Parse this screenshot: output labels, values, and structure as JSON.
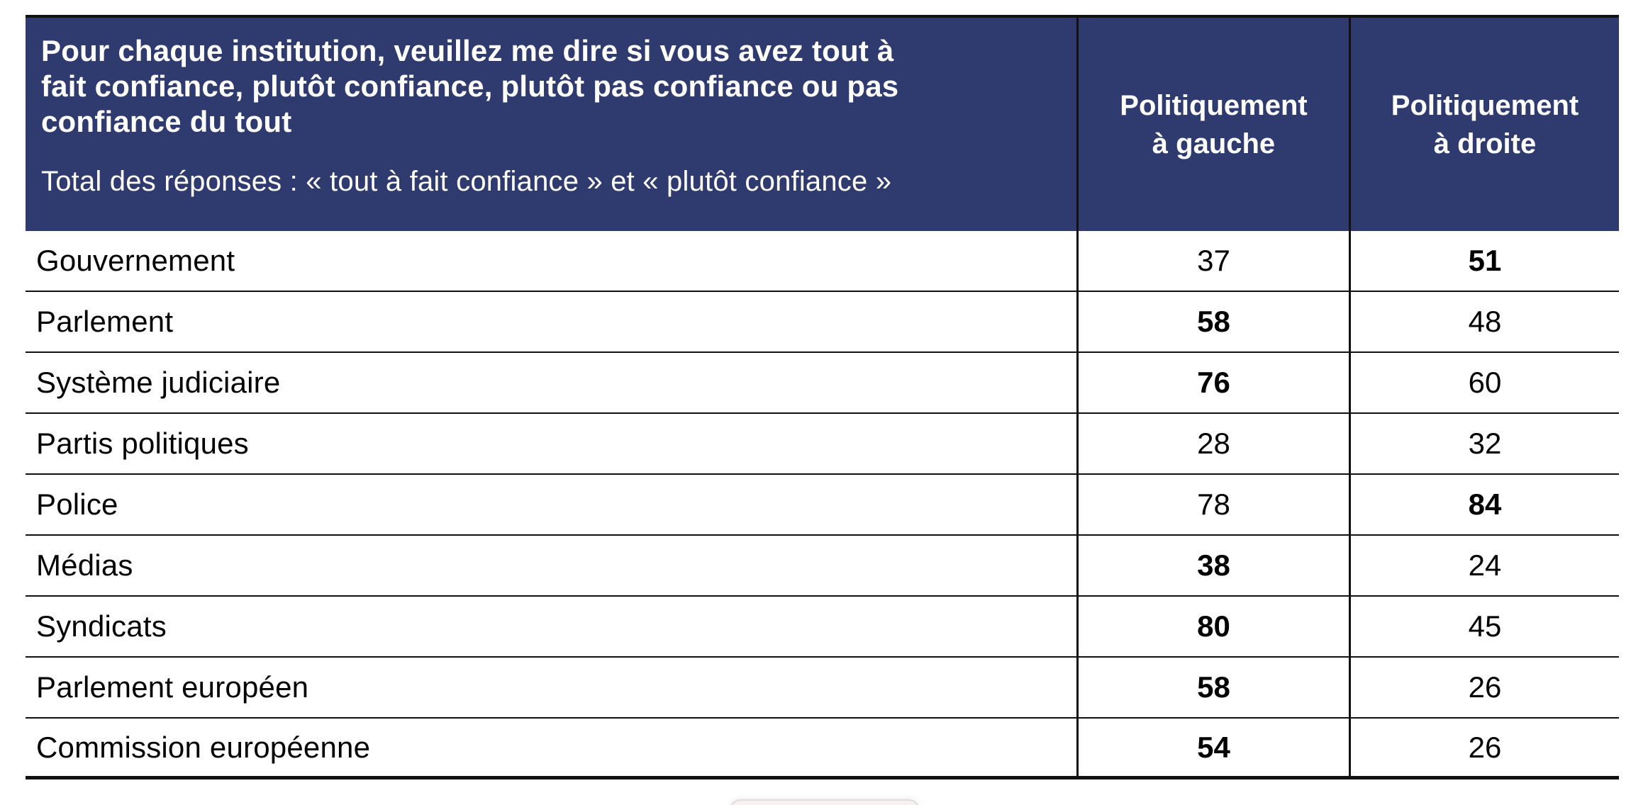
{
  "table": {
    "title_lines": [
      "Pour chaque institution, veuillez me dire si vous avez tout à",
      "fait confiance, plutôt confiance, plutôt pas confiance ou pas",
      "confiance du tout"
    ],
    "subtitle": "Total des réponses : « tout à fait confiance » et « plutôt confiance »",
    "columns": [
      {
        "line1": "Politiquement",
        "line2": "à gauche"
      },
      {
        "line1": "Politiquement",
        "line2": "à droite"
      }
    ],
    "rows": [
      {
        "label": "Gouvernement",
        "gauche": {
          "value": "37",
          "bold": false
        },
        "droite": {
          "value": "51",
          "bold": true
        }
      },
      {
        "label": "Parlement",
        "gauche": {
          "value": "58",
          "bold": true
        },
        "droite": {
          "value": "48",
          "bold": false
        }
      },
      {
        "label": "Système judiciaire",
        "gauche": {
          "value": "76",
          "bold": true
        },
        "droite": {
          "value": "60",
          "bold": false
        }
      },
      {
        "label": "Partis politiques",
        "gauche": {
          "value": "28",
          "bold": false
        },
        "droite": {
          "value": "32",
          "bold": false
        }
      },
      {
        "label": "Police",
        "gauche": {
          "value": "78",
          "bold": false
        },
        "droite": {
          "value": "84",
          "bold": true
        }
      },
      {
        "label": "Médias",
        "gauche": {
          "value": "38",
          "bold": true
        },
        "droite": {
          "value": "24",
          "bold": false
        }
      },
      {
        "label": "Syndicats",
        "gauche": {
          "value": "80",
          "bold": true
        },
        "droite": {
          "value": "45",
          "bold": false
        }
      },
      {
        "label": "Parlement européen",
        "gauche": {
          "value": "58",
          "bold": true
        },
        "droite": {
          "value": "26",
          "bold": false
        }
      },
      {
        "label": "Commission européenne",
        "gauche": {
          "value": "54",
          "bold": true
        },
        "droite": {
          "value": "26",
          "bold": false
        }
      }
    ]
  },
  "colors": {
    "header_bg": "#2F3A6E",
    "header_text": "#FFFFFF",
    "border": "#111111",
    "body_text": "#000000",
    "popup_bg": "#F7F3F3"
  },
  "chart_data": {
    "type": "table",
    "title": "Pour chaque institution, veuillez me dire si vous avez tout à fait confiance, plutôt confiance, plutôt pas confiance ou pas confiance du tout",
    "subtitle": "Total des réponses : « tout à fait confiance » et « plutôt confiance »",
    "categories": [
      "Gouvernement",
      "Parlement",
      "Système judiciaire",
      "Partis politiques",
      "Police",
      "Médias",
      "Syndicats",
      "Parlement européen",
      "Commission européenne"
    ],
    "series": [
      {
        "name": "Politiquement à gauche",
        "values": [
          37,
          58,
          76,
          28,
          78,
          38,
          80,
          58,
          54
        ]
      },
      {
        "name": "Politiquement à droite",
        "values": [
          51,
          48,
          60,
          32,
          84,
          24,
          45,
          26,
          26
        ]
      }
    ],
    "emphasized": {
      "Politiquement à gauche": [
        false,
        true,
        true,
        false,
        false,
        true,
        true,
        true,
        true
      ],
      "Politiquement à droite": [
        true,
        false,
        false,
        false,
        true,
        false,
        false,
        false,
        false
      ]
    }
  }
}
